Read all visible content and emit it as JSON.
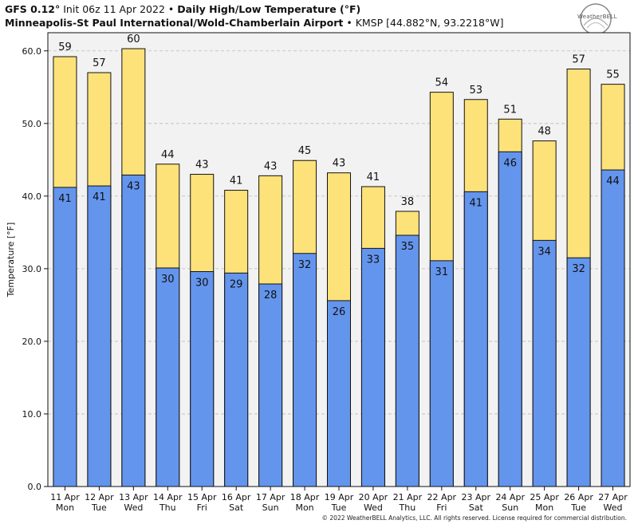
{
  "header": {
    "model": "GFS 0.12",
    "model_deg": "°",
    "init": "Init 06z 11 Apr 2022",
    "bullet": "•",
    "product": "Daily High/Low Temperature (°F)",
    "station": "Minneapolis-St Paul International/Wold-Chamberlain Airport",
    "station_meta": "KMSP [44.882°N, 93.2218°W]"
  },
  "logo": {
    "name": "weatherbell-logo-icon",
    "text": "WeatherBELL"
  },
  "footer": {
    "copyright": "© 2022 WeatherBELL Analytics, LLC. All rights reserved. License required for commercial distribution."
  },
  "colors": {
    "high": "#fde27a",
    "low": "#6495ed",
    "plot_bg": "#f2f2f2",
    "edge": "#111111"
  },
  "chart_data": {
    "type": "bar",
    "title": "Daily High/Low Temperature (°F)",
    "xlabel": "",
    "ylabel": "Temperature [°F]",
    "ylim": [
      0,
      62.5
    ],
    "yticks": [
      "0.0",
      "10.0",
      "20.0",
      "30.0",
      "40.0",
      "50.0",
      "60.0"
    ],
    "ytick_values": [
      0,
      10,
      20,
      30,
      40,
      50,
      60
    ],
    "grid": true,
    "categories": [
      {
        "date": "11 Apr",
        "day": "Mon"
      },
      {
        "date": "12 Apr",
        "day": "Tue"
      },
      {
        "date": "13 Apr",
        "day": "Wed"
      },
      {
        "date": "14 Apr",
        "day": "Thu"
      },
      {
        "date": "15 Apr",
        "day": "Fri"
      },
      {
        "date": "16 Apr",
        "day": "Sat"
      },
      {
        "date": "17 Apr",
        "day": "Sun"
      },
      {
        "date": "18 Apr",
        "day": "Mon"
      },
      {
        "date": "19 Apr",
        "day": "Tue"
      },
      {
        "date": "20 Apr",
        "day": "Wed"
      },
      {
        "date": "21 Apr",
        "day": "Thu"
      },
      {
        "date": "22 Apr",
        "day": "Fri"
      },
      {
        "date": "23 Apr",
        "day": "Sat"
      },
      {
        "date": "24 Apr",
        "day": "Sun"
      },
      {
        "date": "25 Apr",
        "day": "Mon"
      },
      {
        "date": "26 Apr",
        "day": "Tue"
      },
      {
        "date": "27 Apr",
        "day": "Wed"
      }
    ],
    "series": [
      {
        "name": "High",
        "values": [
          59.2,
          57.0,
          60.3,
          44.4,
          43.0,
          40.8,
          42.8,
          44.9,
          43.2,
          41.3,
          37.9,
          54.3,
          53.3,
          50.6,
          47.6,
          57.5,
          55.4
        ],
        "labels": [
          "59",
          "57",
          "60",
          "44",
          "43",
          "41",
          "43",
          "45",
          "43",
          "41",
          "38",
          "54",
          "53",
          "51",
          "48",
          "57",
          "55"
        ]
      },
      {
        "name": "Low",
        "values": [
          41.2,
          41.4,
          42.9,
          30.1,
          29.6,
          29.4,
          27.9,
          32.1,
          25.6,
          32.8,
          34.6,
          31.1,
          40.6,
          46.1,
          33.9,
          31.5,
          43.6
        ],
        "labels": [
          "41",
          "41",
          "43",
          "30",
          "30",
          "29",
          "28",
          "32",
          "26",
          "33",
          "35",
          "31",
          "41",
          "46",
          "34",
          "32",
          "44"
        ]
      }
    ]
  }
}
